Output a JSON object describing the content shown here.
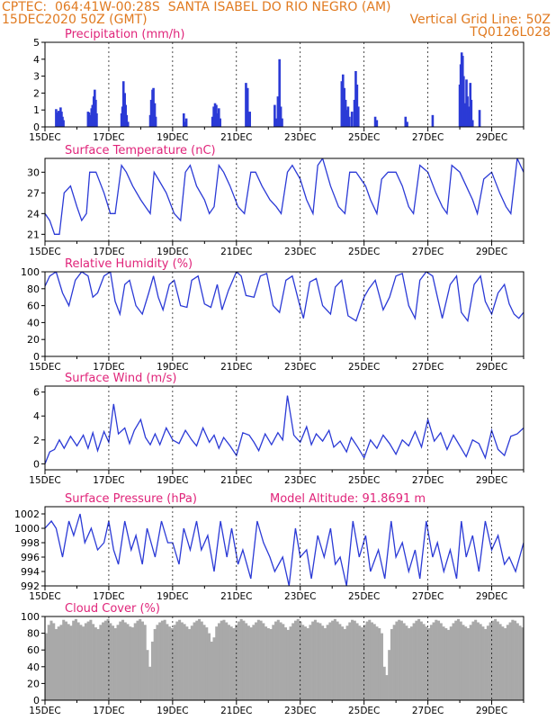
{
  "header": {
    "left_line1": "CPTEC:  064:41W-00:28S  SANTA ISABEL DO RIO NEGRO (AM)",
    "left_line2": "15DEC2020 50Z (GMT)",
    "right_line2": "Vertical Grid Line: 50Z",
    "right_line3": "TQ0126L028"
  },
  "x_ticks": [
    "15DEC",
    "17DEC",
    "19DEC",
    "21DEC",
    "23DEC",
    "25DEC",
    "27DEC",
    "29DEC"
  ],
  "colors": {
    "header": "#e07a20",
    "panel_title": "#e0247a",
    "series": "#2b3ad6",
    "cloud": "#a9a9a9",
    "grid": "#000000"
  },
  "chart_data": [
    {
      "id": "precip",
      "type": "bar",
      "title": "Precipitation (mm/h)",
      "ylim": [
        0,
        5
      ],
      "yticks": [
        0,
        1,
        2,
        3,
        4,
        5
      ],
      "x_start_day": 0,
      "x_end_day": 15,
      "values": [
        [
          0.35,
          1.05
        ],
        [
          0.37,
          0.85
        ],
        [
          0.4,
          0.7
        ],
        [
          0.43,
          0.95
        ],
        [
          0.46,
          0.8
        ],
        [
          0.49,
          1.15
        ],
        [
          0.52,
          0.9
        ],
        [
          0.55,
          0.6
        ],
        [
          0.58,
          0.4
        ],
        [
          1.35,
          0.9
        ],
        [
          1.38,
          0.85
        ],
        [
          1.41,
          0.7
        ],
        [
          1.46,
          1.1
        ],
        [
          1.49,
          1.3
        ],
        [
          1.53,
          1.8
        ],
        [
          1.56,
          2.2
        ],
        [
          1.59,
          1.6
        ],
        [
          1.62,
          0.8
        ],
        [
          2.4,
          0.8
        ],
        [
          2.43,
          1.2
        ],
        [
          2.46,
          2.7
        ],
        [
          2.5,
          2.0
        ],
        [
          2.53,
          1.3
        ],
        [
          2.56,
          0.7
        ],
        [
          2.6,
          0.3
        ],
        [
          3.3,
          0.7
        ],
        [
          3.33,
          1.6
        ],
        [
          3.37,
          2.2
        ],
        [
          3.4,
          2.3
        ],
        [
          3.44,
          1.4
        ],
        [
          3.47,
          0.6
        ],
        [
          4.35,
          0.8
        ],
        [
          4.39,
          0.3
        ],
        [
          4.43,
          0.5
        ],
        [
          5.25,
          0.6
        ],
        [
          5.29,
          1.2
        ],
        [
          5.33,
          1.4
        ],
        [
          5.37,
          1.3
        ],
        [
          5.41,
          0.8
        ],
        [
          5.45,
          1.1
        ],
        [
          5.49,
          0.5
        ],
        [
          6.3,
          2.6
        ],
        [
          6.35,
          2.3
        ],
        [
          6.42,
          0.9
        ],
        [
          7.2,
          1.3
        ],
        [
          7.24,
          0.5
        ],
        [
          7.3,
          1.8
        ],
        [
          7.35,
          4.0
        ],
        [
          7.39,
          1.2
        ],
        [
          7.43,
          0.5
        ],
        [
          9.3,
          2.7
        ],
        [
          9.34,
          3.1
        ],
        [
          9.38,
          2.3
        ],
        [
          9.42,
          1.6
        ],
        [
          9.46,
          1.0
        ],
        [
          9.5,
          1.2
        ],
        [
          9.54,
          0.6
        ],
        [
          9.62,
          0.9
        ],
        [
          9.7,
          1.6
        ],
        [
          9.74,
          3.3
        ],
        [
          9.78,
          2.5
        ],
        [
          9.82,
          1.2
        ],
        [
          10.35,
          0.6
        ],
        [
          10.4,
          0.4
        ],
        [
          11.3,
          0.6
        ],
        [
          11.35,
          0.3
        ],
        [
          12.15,
          0.7
        ],
        [
          13.0,
          2.5
        ],
        [
          13.03,
          3.7
        ],
        [
          13.06,
          4.4
        ],
        [
          13.09,
          4.2
        ],
        [
          13.12,
          3.0
        ],
        [
          13.15,
          1.4
        ],
        [
          13.18,
          1.0
        ],
        [
          13.21,
          2.8
        ],
        [
          13.24,
          1.8
        ],
        [
          13.27,
          1.2
        ],
        [
          13.3,
          0.8
        ],
        [
          13.33,
          2.6
        ],
        [
          13.36,
          1.6
        ],
        [
          13.4,
          0.4
        ],
        [
          13.62,
          1.0
        ]
      ]
    },
    {
      "id": "temp",
      "type": "line",
      "title": "Surface Temperature (nC)",
      "ylim": [
        20,
        32
      ],
      "yticks": [
        21,
        24,
        27,
        30
      ],
      "x": [
        0,
        0.15,
        0.3,
        0.45,
        0.6,
        0.8,
        1.0,
        1.15,
        1.3,
        1.4,
        1.6,
        1.85,
        2.05,
        2.2,
        2.4,
        2.55,
        2.75,
        3.0,
        3.15,
        3.3,
        3.42,
        3.55,
        3.8,
        4.05,
        4.25,
        4.4,
        4.55,
        4.75,
        5.0,
        5.15,
        5.3,
        5.45,
        5.6,
        5.8,
        6.05,
        6.25,
        6.45,
        6.6,
        6.8,
        7.05,
        7.25,
        7.4,
        7.6,
        7.75,
        8.0,
        8.2,
        8.4,
        8.55,
        8.7,
        8.95,
        9.2,
        9.4,
        9.55,
        9.75,
        10.05,
        10.2,
        10.4,
        10.55,
        10.75,
        11.0,
        11.2,
        11.4,
        11.55,
        11.75,
        12.0,
        12.25,
        12.45,
        12.6,
        12.75,
        13.0,
        13.2,
        13.4,
        13.55,
        13.75,
        14.0,
        14.25,
        14.45,
        14.6,
        14.8,
        15.0
      ],
      "values": [
        24,
        23,
        21,
        21,
        27,
        28,
        25,
        23,
        24,
        30,
        30,
        27,
        24,
        24,
        31,
        30,
        28,
        26,
        25,
        24,
        30,
        29,
        27,
        24,
        23,
        30,
        31,
        28,
        26,
        24,
        25,
        31,
        30,
        28,
        25,
        24,
        30,
        30,
        28,
        26,
        25,
        24,
        30,
        31,
        29,
        26,
        24,
        31,
        32,
        28,
        25,
        24,
        30,
        30,
        28,
        26,
        24,
        29,
        30,
        30,
        28,
        25,
        24,
        31,
        30,
        27,
        25,
        24,
        31,
        30,
        28,
        26,
        24,
        29,
        30,
        27,
        25,
        24,
        32,
        30
      ]
    },
    {
      "id": "rh",
      "type": "line",
      "title": "Relative Humidity (%)",
      "ylim": [
        0,
        100
      ],
      "yticks": [
        0,
        20,
        40,
        60,
        80,
        100
      ],
      "x": [
        0,
        0.15,
        0.35,
        0.55,
        0.75,
        0.95,
        1.15,
        1.35,
        1.5,
        1.65,
        1.85,
        2.05,
        2.2,
        2.35,
        2.5,
        2.65,
        2.85,
        3.05,
        3.25,
        3.4,
        3.55,
        3.7,
        3.9,
        4.05,
        4.25,
        4.45,
        4.6,
        4.8,
        5.0,
        5.2,
        5.4,
        5.55,
        5.75,
        6.0,
        6.15,
        6.3,
        6.55,
        6.75,
        6.95,
        7.15,
        7.35,
        7.55,
        7.75,
        7.95,
        8.1,
        8.3,
        8.5,
        8.7,
        8.95,
        9.1,
        9.3,
        9.5,
        9.75,
        10.0,
        10.15,
        10.35,
        10.6,
        10.8,
        11.0,
        11.2,
        11.4,
        11.6,
        11.75,
        11.95,
        12.15,
        12.3,
        12.45,
        12.7,
        12.9,
        13.05,
        13.25,
        13.45,
        13.65,
        13.8,
        14.0,
        14.2,
        14.4,
        14.55,
        14.7,
        14.85,
        15.0
      ],
      "values": [
        83,
        95,
        100,
        75,
        60,
        90,
        100,
        95,
        70,
        75,
        95,
        100,
        65,
        50,
        85,
        90,
        60,
        50,
        75,
        95,
        70,
        55,
        85,
        90,
        60,
        58,
        90,
        95,
        62,
        58,
        85,
        55,
        78,
        100,
        95,
        72,
        70,
        95,
        98,
        60,
        52,
        90,
        95,
        65,
        45,
        88,
        92,
        60,
        50,
        82,
        90,
        48,
        42,
        70,
        80,
        90,
        55,
        70,
        95,
        98,
        60,
        45,
        90,
        100,
        95,
        70,
        45,
        85,
        95,
        52,
        42,
        85,
        95,
        65,
        50,
        75,
        85,
        62,
        50,
        45,
        52
      ]
    },
    {
      "id": "wind",
      "type": "line",
      "title": "Surface Wind (m/s)",
      "ylim": [
        -0.5,
        6.5
      ],
      "yticks": [
        0,
        2,
        4,
        6
      ],
      "x": [
        0,
        0.15,
        0.3,
        0.45,
        0.6,
        0.8,
        1.0,
        1.2,
        1.35,
        1.5,
        1.65,
        1.85,
        2.0,
        2.15,
        2.3,
        2.5,
        2.65,
        2.8,
        3.0,
        3.15,
        3.3,
        3.45,
        3.6,
        3.8,
        4.0,
        4.2,
        4.4,
        4.6,
        4.75,
        4.95,
        5.15,
        5.3,
        5.45,
        5.6,
        5.8,
        6.0,
        6.2,
        6.4,
        6.55,
        6.7,
        6.9,
        7.1,
        7.3,
        7.45,
        7.6,
        7.8,
        8.0,
        8.2,
        8.35,
        8.5,
        8.7,
        8.9,
        9.05,
        9.25,
        9.45,
        9.6,
        9.8,
        10.0,
        10.2,
        10.4,
        10.6,
        10.8,
        11.0,
        11.2,
        11.4,
        11.6,
        11.8,
        12.0,
        12.2,
        12.4,
        12.6,
        12.8,
        13.0,
        13.2,
        13.4,
        13.6,
        13.8,
        14.0,
        14.2,
        14.4,
        14.6,
        14.8,
        15.0
      ],
      "values": [
        0,
        1,
        1.2,
        2.0,
        1.3,
        2.3,
        1.5,
        2.4,
        1.3,
        2.6,
        1.1,
        2.7,
        1.8,
        5.0,
        2.5,
        3.0,
        1.7,
        2.8,
        3.7,
        2.2,
        1.6,
        2.5,
        1.6,
        3.0,
        2.0,
        1.7,
        2.8,
        2.0,
        1.5,
        3.0,
        1.8,
        2.4,
        1.3,
        2.2,
        1.5,
        0.7,
        2.6,
        2.4,
        1.8,
        1.1,
        2.5,
        1.6,
        2.6,
        2.0,
        5.7,
        2.4,
        1.8,
        3.1,
        1.6,
        2.5,
        1.9,
        2.8,
        1.4,
        1.9,
        1.0,
        2.2,
        1.4,
        0.5,
        2.0,
        1.3,
        2.4,
        1.7,
        0.8,
        2.0,
        1.5,
        2.7,
        1.4,
        3.7,
        1.9,
        2.6,
        1.2,
        2.4,
        1.5,
        0.6,
        2.0,
        1.7,
        0.5,
        2.8,
        1.2,
        0.7,
        2.3,
        2.5,
        3.0
      ]
    },
    {
      "id": "pres",
      "type": "line",
      "title": "Surface Pressure (hPa)",
      "annotation": "Model Altitude: 91.8691 m",
      "ylim": [
        992,
        1003
      ],
      "yticks": [
        992,
        994,
        996,
        998,
        1000,
        1002
      ],
      "x": [
        0,
        0.2,
        0.35,
        0.55,
        0.75,
        0.9,
        1.1,
        1.25,
        1.45,
        1.65,
        1.85,
        2.0,
        2.15,
        2.3,
        2.5,
        2.7,
        2.85,
        3.05,
        3.2,
        3.45,
        3.65,
        3.85,
        4.0,
        4.2,
        4.35,
        4.55,
        4.75,
        4.9,
        5.1,
        5.3,
        5.5,
        5.7,
        5.85,
        6.05,
        6.2,
        6.45,
        6.65,
        6.85,
        7.05,
        7.2,
        7.45,
        7.65,
        7.85,
        8.0,
        8.2,
        8.35,
        8.55,
        8.75,
        8.95,
        9.1,
        9.25,
        9.45,
        9.65,
        9.85,
        10.05,
        10.2,
        10.45,
        10.65,
        10.85,
        11.0,
        11.2,
        11.4,
        11.6,
        11.75,
        11.95,
        12.15,
        12.3,
        12.5,
        12.7,
        12.9,
        13.05,
        13.2,
        13.4,
        13.6,
        13.8,
        14.0,
        14.2,
        14.4,
        14.55,
        14.75,
        15.0
      ],
      "values": [
        1000,
        1001,
        1000,
        996,
        1001,
        999,
        1002,
        998,
        1000,
        997,
        998,
        1001,
        997,
        995,
        1001,
        997,
        999,
        995,
        1000,
        996,
        1001,
        998,
        998,
        995,
        1000,
        997,
        1001,
        997,
        999,
        994,
        1001,
        996,
        1000,
        995,
        997,
        993,
        1001,
        998,
        996,
        994,
        996,
        992,
        1000,
        996,
        997,
        993,
        999,
        996,
        1000,
        995,
        996,
        992,
        1001,
        996,
        999,
        994,
        997,
        993,
        1001,
        996,
        998,
        994,
        997,
        993,
        1001,
        996,
        998,
        994,
        997,
        993,
        1001,
        996,
        999,
        994,
        1001,
        997,
        999,
        995,
        996,
        994,
        998
      ]
    },
    {
      "id": "cloud",
      "type": "bar",
      "title": "Cloud Cover (%)",
      "ylim": [
        0,
        100
      ],
      "yticks": [
        0,
        20,
        40,
        60,
        80,
        100
      ],
      "x_start_day": 0,
      "x_end_day": 15,
      "values": [
        80,
        90,
        95,
        92,
        85,
        88,
        90,
        96,
        94,
        91,
        89,
        95,
        97,
        93,
        90,
        88,
        92,
        94,
        96,
        91,
        87,
        85,
        90,
        93,
        95,
        97,
        92,
        89,
        86,
        90,
        94,
        96,
        93,
        91,
        88,
        87,
        92,
        95,
        97,
        94,
        90,
        60,
        40,
        70,
        85,
        90,
        93,
        95,
        96,
        91,
        88,
        86,
        90,
        94,
        96,
        93,
        91,
        88,
        85,
        89,
        93,
        95,
        97,
        94,
        90,
        87,
        80,
        70,
        75,
        88,
        92,
        95,
        96,
        93,
        90,
        88,
        86,
        90,
        94,
        97,
        95,
        92,
        89,
        87,
        90,
        93,
        96,
        95,
        92,
        88,
        86,
        85,
        90,
        94,
        96,
        93,
        91,
        87,
        84,
        88,
        92,
        95,
        97,
        94,
        90,
        88,
        86,
        90,
        94,
        96,
        93,
        92,
        89,
        86,
        90,
        93,
        95,
        97,
        94,
        91,
        88,
        85,
        89,
        93,
        96,
        95,
        92,
        89,
        87,
        90,
        94,
        96,
        93,
        91,
        88,
        86,
        80,
        40,
        30,
        60,
        85,
        90,
        94,
        96,
        95,
        92,
        89,
        86,
        88,
        92,
        95,
        97,
        94,
        91,
        88,
        86,
        90,
        93,
        96,
        95,
        92,
        88,
        86,
        84,
        88,
        92,
        95,
        97,
        94,
        90,
        88,
        86,
        90,
        94,
        96,
        93,
        91,
        88,
        85,
        89,
        93,
        95,
        97,
        94,
        91,
        88,
        86,
        90,
        93,
        96,
        95,
        92,
        89,
        87
      ]
    }
  ]
}
